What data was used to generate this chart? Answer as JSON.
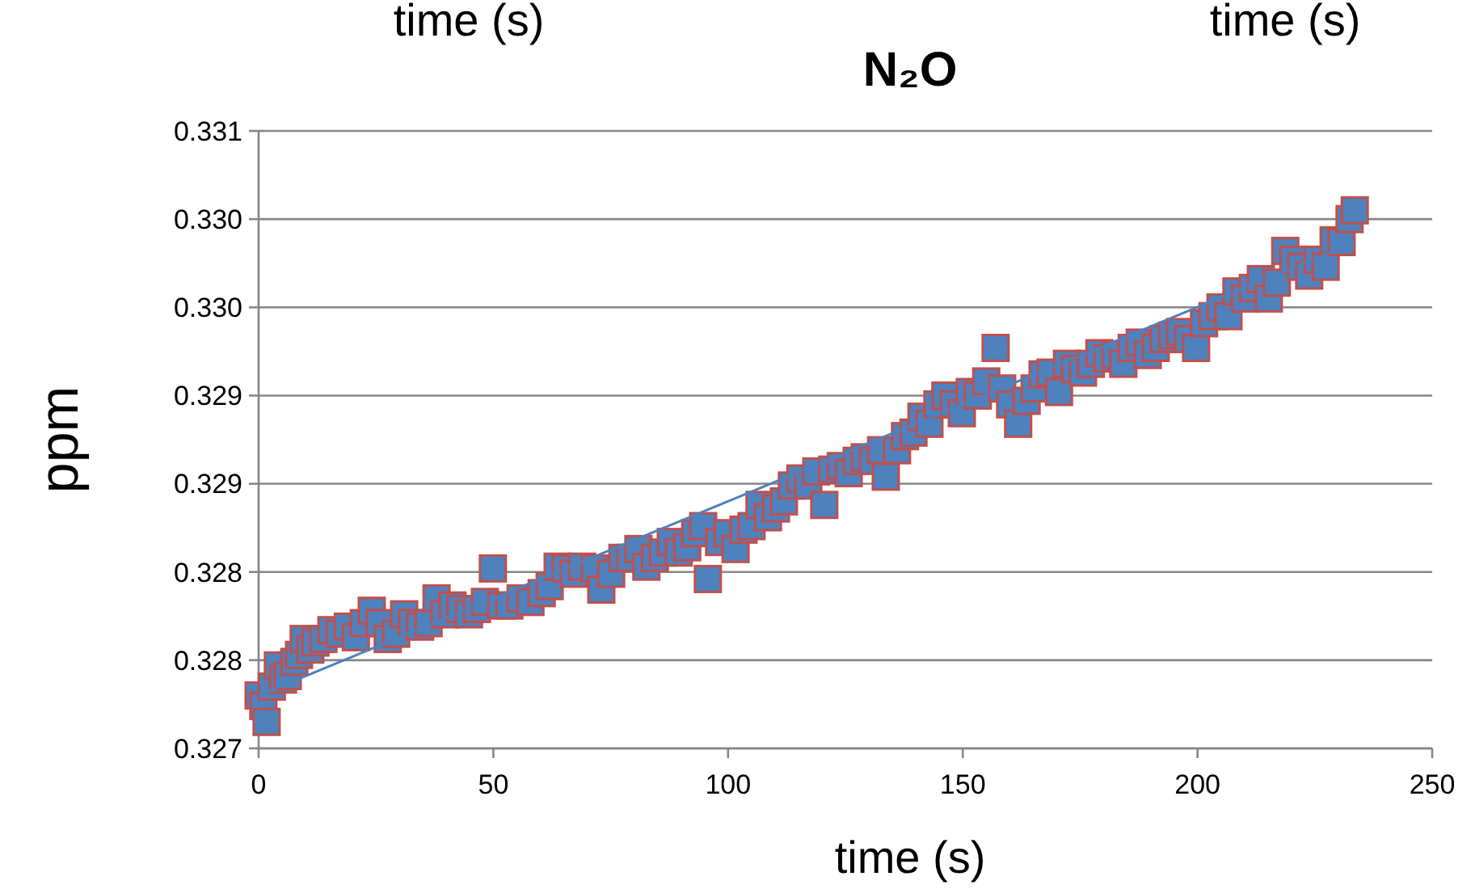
{
  "chart_data": {
    "type": "scatter",
    "title": "N₂O",
    "xlabel": "time (s)",
    "ylabel": "ppm",
    "annotations": [
      "time (s)",
      "time (s)"
    ],
    "xlim": [
      0,
      250
    ],
    "xticks": [
      0,
      50,
      100,
      150,
      200,
      250
    ],
    "ylim": [
      0.327,
      0.3305
    ],
    "yticks": [
      0.327,
      {
        "value": 0.3275,
        "label": "0.328"
      },
      {
        "value": 0.328,
        "label": "0.328"
      },
      {
        "value": 0.3285,
        "label": "0.329"
      },
      {
        "value": 0.329,
        "label": "0.329"
      },
      {
        "value": 0.3295,
        "label": "0.330"
      },
      {
        "value": 0.33,
        "label": "0.330"
      },
      {
        "value": 0.3305,
        "label": "0.331"
      }
    ],
    "grid": "y",
    "marker": "square",
    "series": [
      {
        "color": "#4f81bd",
        "x": [
          0,
          1.0,
          1.7,
          2.8,
          4.1,
          5.2,
          6.2,
          7.6,
          8.6,
          9.6,
          11.0,
          12.1,
          13.8,
          15.5,
          17.2,
          19.0,
          20.7,
          22.4,
          24.1,
          25.8,
          27.5,
          29.3,
          31.0,
          32.7,
          34.4,
          36.2,
          37.9,
          39.6,
          41.3,
          43.0,
          44.8,
          46.5,
          48.2,
          49.9,
          51.7,
          53.4,
          55.8,
          57.9,
          60.3,
          62.0,
          63.7,
          65.4,
          67.1,
          68.9,
          71.6,
          73.0,
          75.1,
          77.5,
          79.2,
          80.9,
          82.6,
          84.4,
          86.1,
          87.8,
          89.5,
          91.3,
          93.0,
          94.7,
          95.7,
          98.1,
          99.9,
          101.6,
          103.3,
          105.0,
          106.7,
          108.5,
          110.2,
          111.9,
          113.6,
          115.4,
          117.1,
          118.8,
          120.5,
          122.2,
          124.0,
          125.7,
          127.4,
          129.1,
          130.9,
          132.6,
          133.6,
          136.0,
          137.7,
          139.5,
          141.2,
          142.9,
          144.6,
          146.3,
          148.1,
          149.8,
          151.5,
          153.2,
          155.0,
          157.0,
          158.4,
          160.1,
          161.8,
          163.6,
          165.3,
          167.0,
          168.7,
          170.5,
          172.2,
          173.9,
          175.6,
          177.3,
          179.1,
          180.8,
          182.5,
          184.2,
          186.0,
          187.7,
          189.4,
          191.1,
          192.8,
          194.6,
          196.3,
          198.0,
          199.7,
          201.4,
          203.2,
          204.9,
          206.6,
          208.3,
          210.1,
          211.8,
          213.5,
          215.2,
          216.9,
          218.7,
          220.4,
          222.1,
          223.8,
          225.6,
          227.3,
          229.0,
          230.7,
          232.4,
          233.5
        ],
        "values": [
          0.3273,
          0.32724,
          0.32715,
          0.32735,
          0.32747,
          0.32739,
          0.32741,
          0.32749,
          0.32753,
          0.32762,
          0.32756,
          0.3276,
          0.32762,
          0.32767,
          0.32765,
          0.32769,
          0.32763,
          0.32771,
          0.32778,
          0.32771,
          0.32762,
          0.32765,
          0.32776,
          0.32771,
          0.32769,
          0.32771,
          0.32785,
          0.32776,
          0.32781,
          0.32779,
          0.32776,
          0.32779,
          0.32783,
          0.32802,
          0.32781,
          0.32781,
          0.32785,
          0.32783,
          0.32788,
          0.32792,
          0.32803,
          0.32802,
          0.32799,
          0.32803,
          0.32802,
          0.3279,
          0.32799,
          0.32808,
          0.32808,
          0.32813,
          0.32803,
          0.32808,
          0.32811,
          0.32817,
          0.32811,
          0.32814,
          0.32822,
          0.32826,
          0.32796,
          0.32817,
          0.32822,
          0.32813,
          0.32824,
          0.32826,
          0.32838,
          0.32831,
          0.32836,
          0.3284,
          0.32849,
          0.32853,
          0.32849,
          0.32857,
          0.32838,
          0.32858,
          0.3286,
          0.32856,
          0.32863,
          0.32865,
          0.32863,
          0.32869,
          0.32854,
          0.32869,
          0.32877,
          0.32879,
          0.32888,
          0.32884,
          0.32895,
          0.329,
          0.32895,
          0.3289,
          0.32902,
          0.329,
          0.32908,
          0.32927,
          0.32904,
          0.32895,
          0.32884,
          0.32897,
          0.32904,
          0.32912,
          0.32913,
          0.32902,
          0.32918,
          0.32915,
          0.32913,
          0.32918,
          0.32924,
          0.32921,
          0.32923,
          0.32918,
          0.32927,
          0.3293,
          0.32923,
          0.32927,
          0.32932,
          0.32934,
          0.32936,
          0.32932,
          0.32927,
          0.32941,
          0.32945,
          0.3295,
          0.32945,
          0.32959,
          0.32955,
          0.32961,
          0.32966,
          0.32955,
          0.32964,
          0.32982,
          0.32977,
          0.32973,
          0.32968,
          0.32977,
          0.32973,
          0.32988,
          0.32987,
          0.33,
          0.33005
        ]
      },
      {
        "type": "line",
        "color": "#4f81bd",
        "marker": "none",
        "line_style": "solid",
        "x": [
          0,
          233.5
        ],
        "values": [
          0.3273,
          0.32987
        ]
      }
    ]
  }
}
